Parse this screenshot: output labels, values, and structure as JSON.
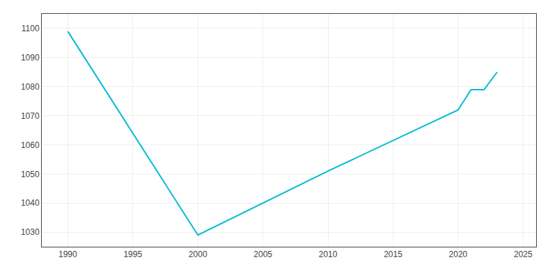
{
  "chart_data": {
    "type": "line",
    "x": [
      1990,
      2000,
      2010,
      2020,
      2021,
      2022,
      2023
    ],
    "values": [
      1099,
      1029,
      1051,
      1072,
      1079,
      1079,
      1085
    ],
    "color": "#00BCD4",
    "xlim": [
      1988,
      2026
    ],
    "ylim": [
      1025,
      1105
    ],
    "xticks": [
      1990,
      1995,
      2000,
      2005,
      2010,
      2015,
      2020,
      2025
    ],
    "yticks": [
      1030,
      1040,
      1050,
      1060,
      1070,
      1080,
      1090,
      1100
    ],
    "grid": true
  }
}
